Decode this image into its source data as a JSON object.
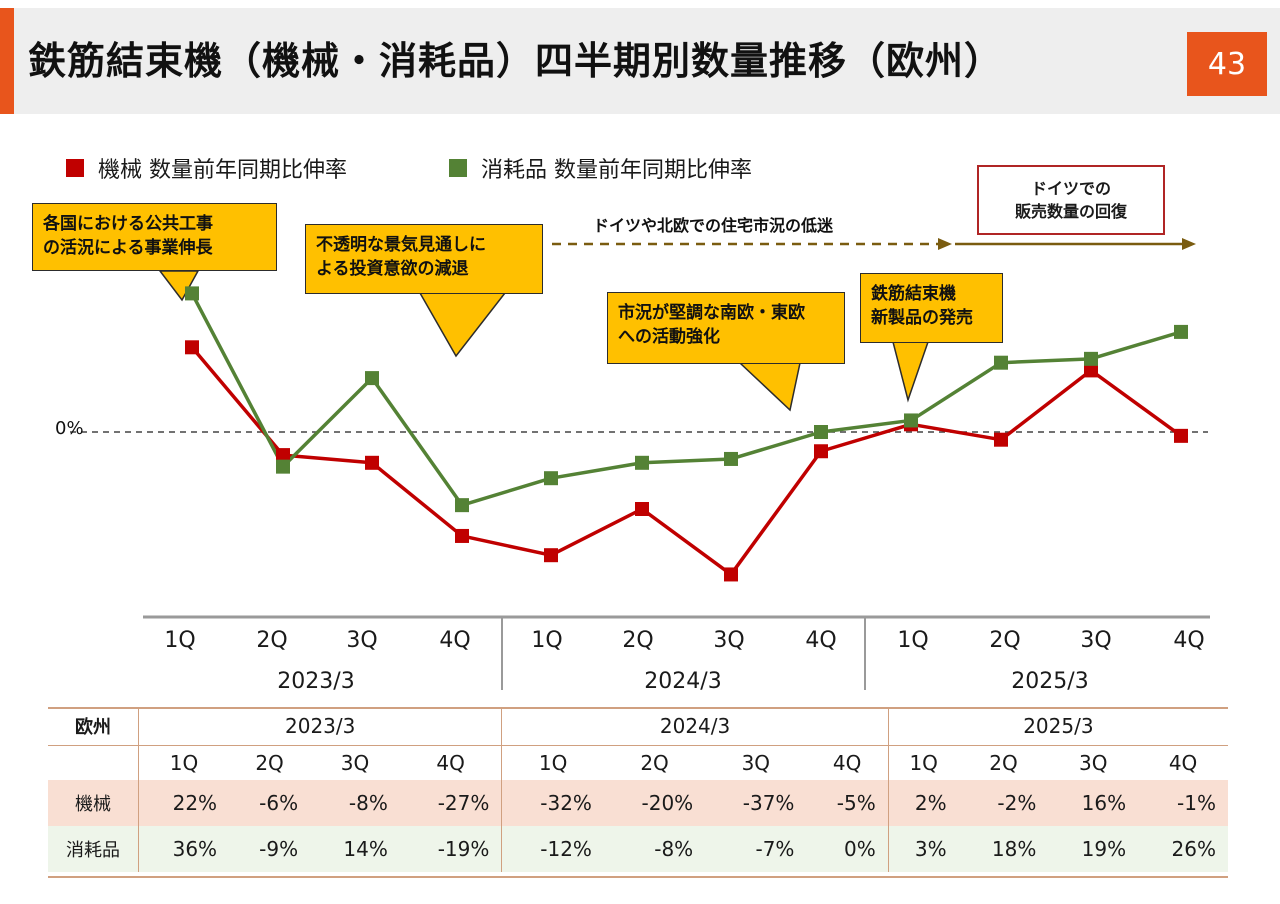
{
  "page": {
    "title": "鉄筋結束機（機械・消耗品）四半期別数量推移（欧州）",
    "page_number": "43",
    "accent_color": "#e8551c"
  },
  "legend": [
    {
      "label": "機械 数量前年同期比伸率",
      "color": "#c00000"
    },
    {
      "label": "消耗品 数量前年同期比伸率",
      "color": "#548235"
    }
  ],
  "zero_label": "0%",
  "callouts": [
    {
      "text": "各国における公共工事\nの活況による事業伸長"
    },
    {
      "text": "不透明な景気見通しに\nよる投資意欲の減退"
    },
    {
      "text": "市況が堅調な南欧・東欧\nへの活動強化"
    },
    {
      "text": "鉄筋結束機\n新製品の発売"
    }
  ],
  "notes": {
    "housing_slump": "ドイツや北欧での住宅市況の低迷",
    "germany_recovery": "ドイツでの\n販売数量の回復"
  },
  "chart_data": {
    "type": "line",
    "categories": [
      "1Q",
      "2Q",
      "3Q",
      "4Q",
      "1Q",
      "2Q",
      "3Q",
      "4Q",
      "1Q",
      "2Q",
      "3Q",
      "4Q"
    ],
    "groups": [
      "2023/3",
      "2024/3",
      "2025/3"
    ],
    "ylabel": "",
    "series": [
      {
        "name": "機械 数量前年同期比伸率",
        "color": "#c00000",
        "values": [
          22,
          -6,
          -8,
          -27,
          -32,
          -20,
          -37,
          -5,
          2,
          -2,
          16,
          -1
        ]
      },
      {
        "name": "消耗品 数量前年同期比伸率",
        "color": "#548235",
        "values": [
          36,
          -9,
          14,
          -19,
          -12,
          -8,
          -7,
          0,
          3,
          18,
          19,
          26
        ]
      }
    ],
    "reference_line": {
      "value": 0,
      "label": "0%",
      "style": "dashed"
    }
  },
  "table": {
    "region": "欧州",
    "years": [
      "2023/3",
      "2024/3",
      "2025/3"
    ],
    "quarters": [
      "1Q",
      "2Q",
      "3Q",
      "4Q",
      "1Q",
      "2Q",
      "3Q",
      "4Q",
      "1Q",
      "2Q",
      "3Q",
      "4Q"
    ],
    "rows": [
      {
        "label": "機械",
        "values": [
          "22%",
          "-6%",
          "-8%",
          "-27%",
          "-32%",
          "-20%",
          "-37%",
          "-5%",
          "2%",
          "-2%",
          "16%",
          "-1%"
        ]
      },
      {
        "label": "消耗品",
        "values": [
          "36%",
          "-9%",
          "14%",
          "-19%",
          "-12%",
          "-8%",
          "-7%",
          "0%",
          "3%",
          "18%",
          "19%",
          "26%"
        ]
      }
    ]
  }
}
